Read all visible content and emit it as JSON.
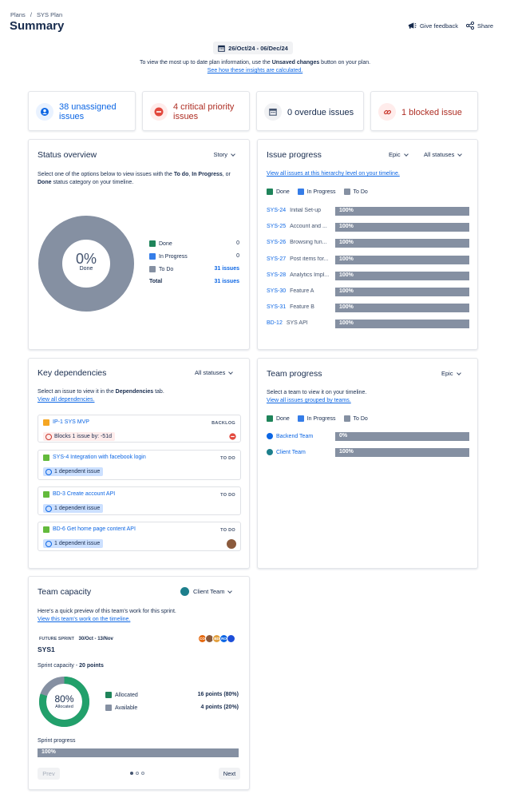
{
  "breadcrumb": {
    "plans": "Plans",
    "separator": "/",
    "plan": "SYS Plan"
  },
  "page_title": "Summary",
  "header_actions": {
    "feedback": "Give feedback",
    "share": "Share"
  },
  "date_range": "26/Oct/24 - 06/Dec/24",
  "notice": {
    "text_before": "To view the most up to date plan information, use the ",
    "bold": "Unsaved changes",
    "text_after": " button on your plan.",
    "link": "See how these insights are calculated."
  },
  "stats": [
    {
      "label": "38 unassigned issues",
      "icon": "person-icon",
      "color": "#0c66e4",
      "icon_bg": "#e9f2ff"
    },
    {
      "label": "4 critical priority issues",
      "icon": "critical-priority-icon",
      "color": "#ae2e24",
      "icon_bg": "#ffeceb"
    },
    {
      "label": "0 overdue issues",
      "icon": "calendar-icon",
      "color": "#172b4d",
      "icon_bg": "#f1f2f4"
    },
    {
      "label": "1 blocked issue",
      "icon": "link-icon",
      "color": "#ae2e24",
      "icon_bg": "#ffeceb"
    }
  ],
  "status_overview": {
    "title": "Status overview",
    "dropdown": "Story",
    "desc_before": "Select one of the options below to view issues with the ",
    "desc_todo": "To do",
    "desc_sep": ", ",
    "desc_inprogress": "In Progress",
    "desc_or": ", or",
    "desc_done": "Done",
    "desc_after": " status category on your timeline.",
    "donut_value": "0%",
    "donut_label": "Done",
    "rows": [
      {
        "label": "Done",
        "value": "0",
        "color": "#1f845a"
      },
      {
        "label": "In Progress",
        "value": "0",
        "color": "#357de8"
      },
      {
        "label": "To Do",
        "value": "31 issues",
        "color": "#8590a2"
      }
    ],
    "total_label": "Total",
    "total_value": "31 issues"
  },
  "issue_progress": {
    "title": "Issue progress",
    "dropdown1": "Epic",
    "dropdown2": "All statuses",
    "link": "View all issues at this hierarchy level on your timeline.",
    "legend": [
      {
        "label": "Done",
        "color": "#1f845a"
      },
      {
        "label": "In Progress",
        "color": "#357de8"
      },
      {
        "label": "To Do",
        "color": "#8590a2"
      }
    ],
    "rows": [
      {
        "key": "SYS-24",
        "name": "Initial Set-up",
        "pct": "100%"
      },
      {
        "key": "SYS-25",
        "name": "Account and ...",
        "pct": "100%"
      },
      {
        "key": "SYS-26",
        "name": "Browsing fun...",
        "pct": "100%"
      },
      {
        "key": "SYS-27",
        "name": "Post items for...",
        "pct": "100%"
      },
      {
        "key": "SYS-28",
        "name": "Analytics Impl...",
        "pct": "100%"
      },
      {
        "key": "SYS-30",
        "name": "Feature A",
        "pct": "100%"
      },
      {
        "key": "SYS-31",
        "name": "Feature B",
        "pct": "100%"
      },
      {
        "key": "BD-12",
        "name": "SYS API",
        "pct": "100%"
      }
    ]
  },
  "key_dependencies": {
    "title": "Key dependencies",
    "dropdown": "All statuses",
    "desc_before": "Select an issue to view it in the ",
    "desc_bold": "Dependencies",
    "desc_after": " tab.",
    "link": "View all dependencies.",
    "items": [
      {
        "title": "IP-1 SYS MVP",
        "status": "BACKLOG",
        "chip": "Blocks 1 issue by: -51d"
      },
      {
        "title": "SYS-4 Integration with facebook login",
        "status": "TO DO",
        "chip": "1 dependent issue"
      },
      {
        "title": "BD-3 Create account API",
        "status": "TO DO",
        "chip": "1 dependent issue"
      },
      {
        "title": "BD-6 Get home page content API",
        "status": "TO DO",
        "chip": "1 dependent issue"
      }
    ]
  },
  "team_progress": {
    "title": "Team progress",
    "dropdown": "Epic",
    "desc": "Select a team to view it on your timeline.",
    "link": "View all issues grouped by teams.",
    "legend": [
      {
        "label": "Done",
        "color": "#1f845a"
      },
      {
        "label": "In Progress",
        "color": "#357de8"
      },
      {
        "label": "To Do",
        "color": "#8590a2"
      }
    ],
    "rows": [
      {
        "name": "Backend Team",
        "pct": "0%"
      },
      {
        "name": "Client Team",
        "pct": "100%"
      }
    ]
  },
  "team_capacity": {
    "title": "Team capacity",
    "team": "Client Team",
    "desc": "Here's a quick preview of this team's work for this sprint.",
    "link": "View this team's work on the timeline.",
    "sprint_tag": "FUTURE SPRINT",
    "sprint_dates": "30/Oct - 13/Nov",
    "sprint_name": "SYS1",
    "avatars": [
      "CO",
      "BD",
      "RO"
    ],
    "capacity_label": "Sprint capacity",
    "capacity_sep": " - ",
    "capacity_value": "20 points",
    "donut_value": "80%",
    "donut_label": "Allocated",
    "allocated_fraction": 0.8,
    "rows": [
      {
        "label": "Allocated",
        "value": "16 points (80%)",
        "color": "#1f845a"
      },
      {
        "label": "Available",
        "value": "4 points (20%)",
        "color": "#8590a2"
      }
    ],
    "progress_label": "Sprint progress",
    "progress_pct": "100%",
    "prev": "Prev",
    "next": "Next"
  }
}
